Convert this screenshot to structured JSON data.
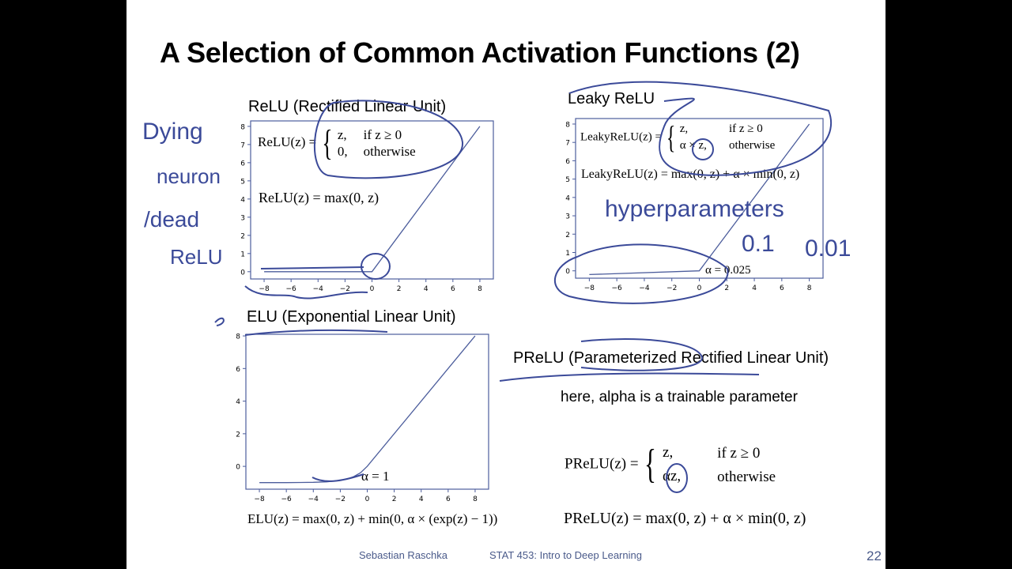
{
  "title": "A Selection of Common Activation Functions (2)",
  "relu": {
    "title": "ReLU (Rectified Linear Unit)",
    "eq_name": "ReLU(z) =",
    "case1_val": "z,",
    "case1_cond": "if z ≥ 0",
    "case2_val": "0,",
    "case2_cond": "otherwise",
    "eq2": "ReLU(z) = max(0, z)"
  },
  "leaky": {
    "title": "Leaky ReLU",
    "eq_name": "LeakyReLU(z) =",
    "case1_val": "z,",
    "case1_cond": "if z ≥ 0",
    "case2_val": "α × z,",
    "case2_cond": "otherwise",
    "eq2": "LeakyReLU(z) = max(0, z) + α × min(0, z)",
    "alpha_label": "α = 0.025"
  },
  "elu": {
    "title": "ELU (Exponential Linear Unit)",
    "alpha_label": "α = 1",
    "formula": "ELU(z) = max(0, z) + min(0, α × (exp(z) − 1))"
  },
  "prelu": {
    "title": "PReLU (Parameterized Rectified Linear Unit)",
    "note": "here, alpha is a trainable parameter",
    "eq_name": "PReLU(z) =",
    "case1_val": "z,",
    "case1_cond": "if z ≥ 0",
    "case2_val": "αz,",
    "case2_cond": "otherwise",
    "eq2": "PReLU(z) = max(0, z) + α × min(0, z)"
  },
  "annotations": {
    "dying_1": "Dying",
    "dying_2": "neuron",
    "dying_3": "/dead",
    "dying_4": "ReLU",
    "hyper": "hyperparameters",
    "val1": "0.1",
    "val2": "0.01"
  },
  "footer": {
    "author": "Sebastian Raschka",
    "course": "STAT 453: Intro to Deep Learning",
    "page": "22"
  },
  "colors": {
    "plot_line": "#4c5d9c",
    "ink": "#3b4a99"
  },
  "chart_data": [
    {
      "type": "line",
      "title": "",
      "x": [
        -8,
        0,
        8
      ],
      "y": [
        0,
        0,
        8
      ],
      "xlim": [
        -9,
        9
      ],
      "ylim": [
        -0.4,
        8.3
      ],
      "xticks": [
        -8,
        -6,
        -4,
        -2,
        0,
        2,
        4,
        6,
        8
      ],
      "yticks": [
        0,
        1,
        2,
        3,
        4,
        5,
        6,
        7,
        8
      ]
    },
    {
      "type": "line",
      "title": "",
      "x": [
        -8,
        0,
        8
      ],
      "y": [
        -0.2,
        0,
        8
      ],
      "xlim": [
        -9,
        9
      ],
      "ylim": [
        -0.4,
        8.3
      ],
      "xticks": [
        -8,
        -6,
        -4,
        -2,
        0,
        2,
        4,
        6,
        8
      ],
      "yticks": [
        0,
        1,
        2,
        3,
        4,
        5,
        6,
        7,
        8
      ]
    },
    {
      "type": "line",
      "title": "",
      "x": [
        -8,
        -6,
        -4,
        -3,
        -2,
        -1.5,
        -1,
        -0.5,
        0,
        8
      ],
      "y": [
        -1.0,
        -1.0,
        -0.98,
        -0.95,
        -0.86,
        -0.78,
        -0.63,
        -0.39,
        0,
        8
      ],
      "xlim": [
        -9,
        9
      ],
      "ylim": [
        -1.4,
        8.1
      ],
      "xticks": [
        -8,
        -6,
        -4,
        -2,
        0,
        2,
        4,
        6,
        8
      ],
      "yticks": [
        0,
        2,
        4,
        6,
        8
      ]
    }
  ]
}
